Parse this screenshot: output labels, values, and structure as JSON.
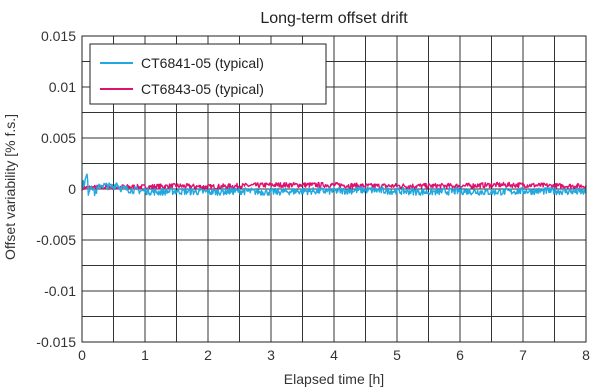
{
  "chart_data": {
    "type": "line",
    "title": "Long-term offset drift",
    "xlabel": "Elapsed time [h]",
    "ylabel": "Offset variability [% f.s.]",
    "xlim": [
      0,
      8
    ],
    "ylim": [
      -0.015,
      0.015
    ],
    "x_ticks": [
      0,
      0.5,
      1,
      1.5,
      2,
      2.5,
      3,
      3.5,
      4,
      4.5,
      5,
      5.5,
      6,
      6.5,
      7,
      7.5,
      8
    ],
    "x_tick_labels": [
      "0",
      "1",
      "2",
      "3",
      "4",
      "5",
      "6",
      "7",
      "8"
    ],
    "y_ticks": [
      -0.015,
      -0.0125,
      -0.01,
      -0.0075,
      -0.005,
      -0.0025,
      0,
      0.0025,
      0.005,
      0.0075,
      0.01,
      0.0125,
      0.015
    ],
    "y_tick_labels": [
      "0.015",
      "0.01",
      "0.005",
      "0",
      "-0.005",
      "-0.01",
      "-0.015"
    ],
    "grid": true,
    "legend_position": "top-left",
    "series": [
      {
        "name": "CT6841-05 (typical)",
        "color": "#22a8e0",
        "x": [
          0,
          0.05,
          0.08,
          0.1,
          0.15,
          0.2,
          0.3,
          0.4,
          0.5,
          0.55,
          0.6,
          0.8,
          1,
          1.2,
          1.5,
          2,
          2.5,
          3,
          3.5,
          4,
          4.5,
          5,
          5.5,
          6,
          6.5,
          7,
          7.5,
          8
        ],
        "y": [
          0.0003,
          0.0008,
          0.0014,
          -0.0003,
          0.0005,
          -0.0004,
          0.0004,
          0.0003,
          0.0002,
          0.0006,
          0.0001,
          -0.0001,
          -0.0002,
          -0.0003,
          -0.0002,
          -0.0003,
          -0.0002,
          -0.0003,
          -0.0002,
          -0.0002,
          -0.0001,
          -0.0002,
          -0.0003,
          -0.0002,
          -0.0003,
          -0.0002,
          -0.0002,
          -0.0003
        ]
      },
      {
        "name": "CT6843-05 (typical)",
        "color": "#e0106e",
        "x": [
          0,
          0.5,
          1,
          1.5,
          2,
          2.5,
          3,
          3.5,
          4,
          4.5,
          5,
          5.5,
          6,
          6.5,
          7,
          7.5,
          8
        ],
        "y": [
          0.0001,
          0.0002,
          0.0002,
          0.0003,
          0.0002,
          0.0003,
          0.0004,
          0.0004,
          0.0004,
          0.0003,
          0.0003,
          0.0003,
          0.0003,
          0.0004,
          0.0004,
          0.0003,
          0.0003
        ]
      }
    ]
  }
}
